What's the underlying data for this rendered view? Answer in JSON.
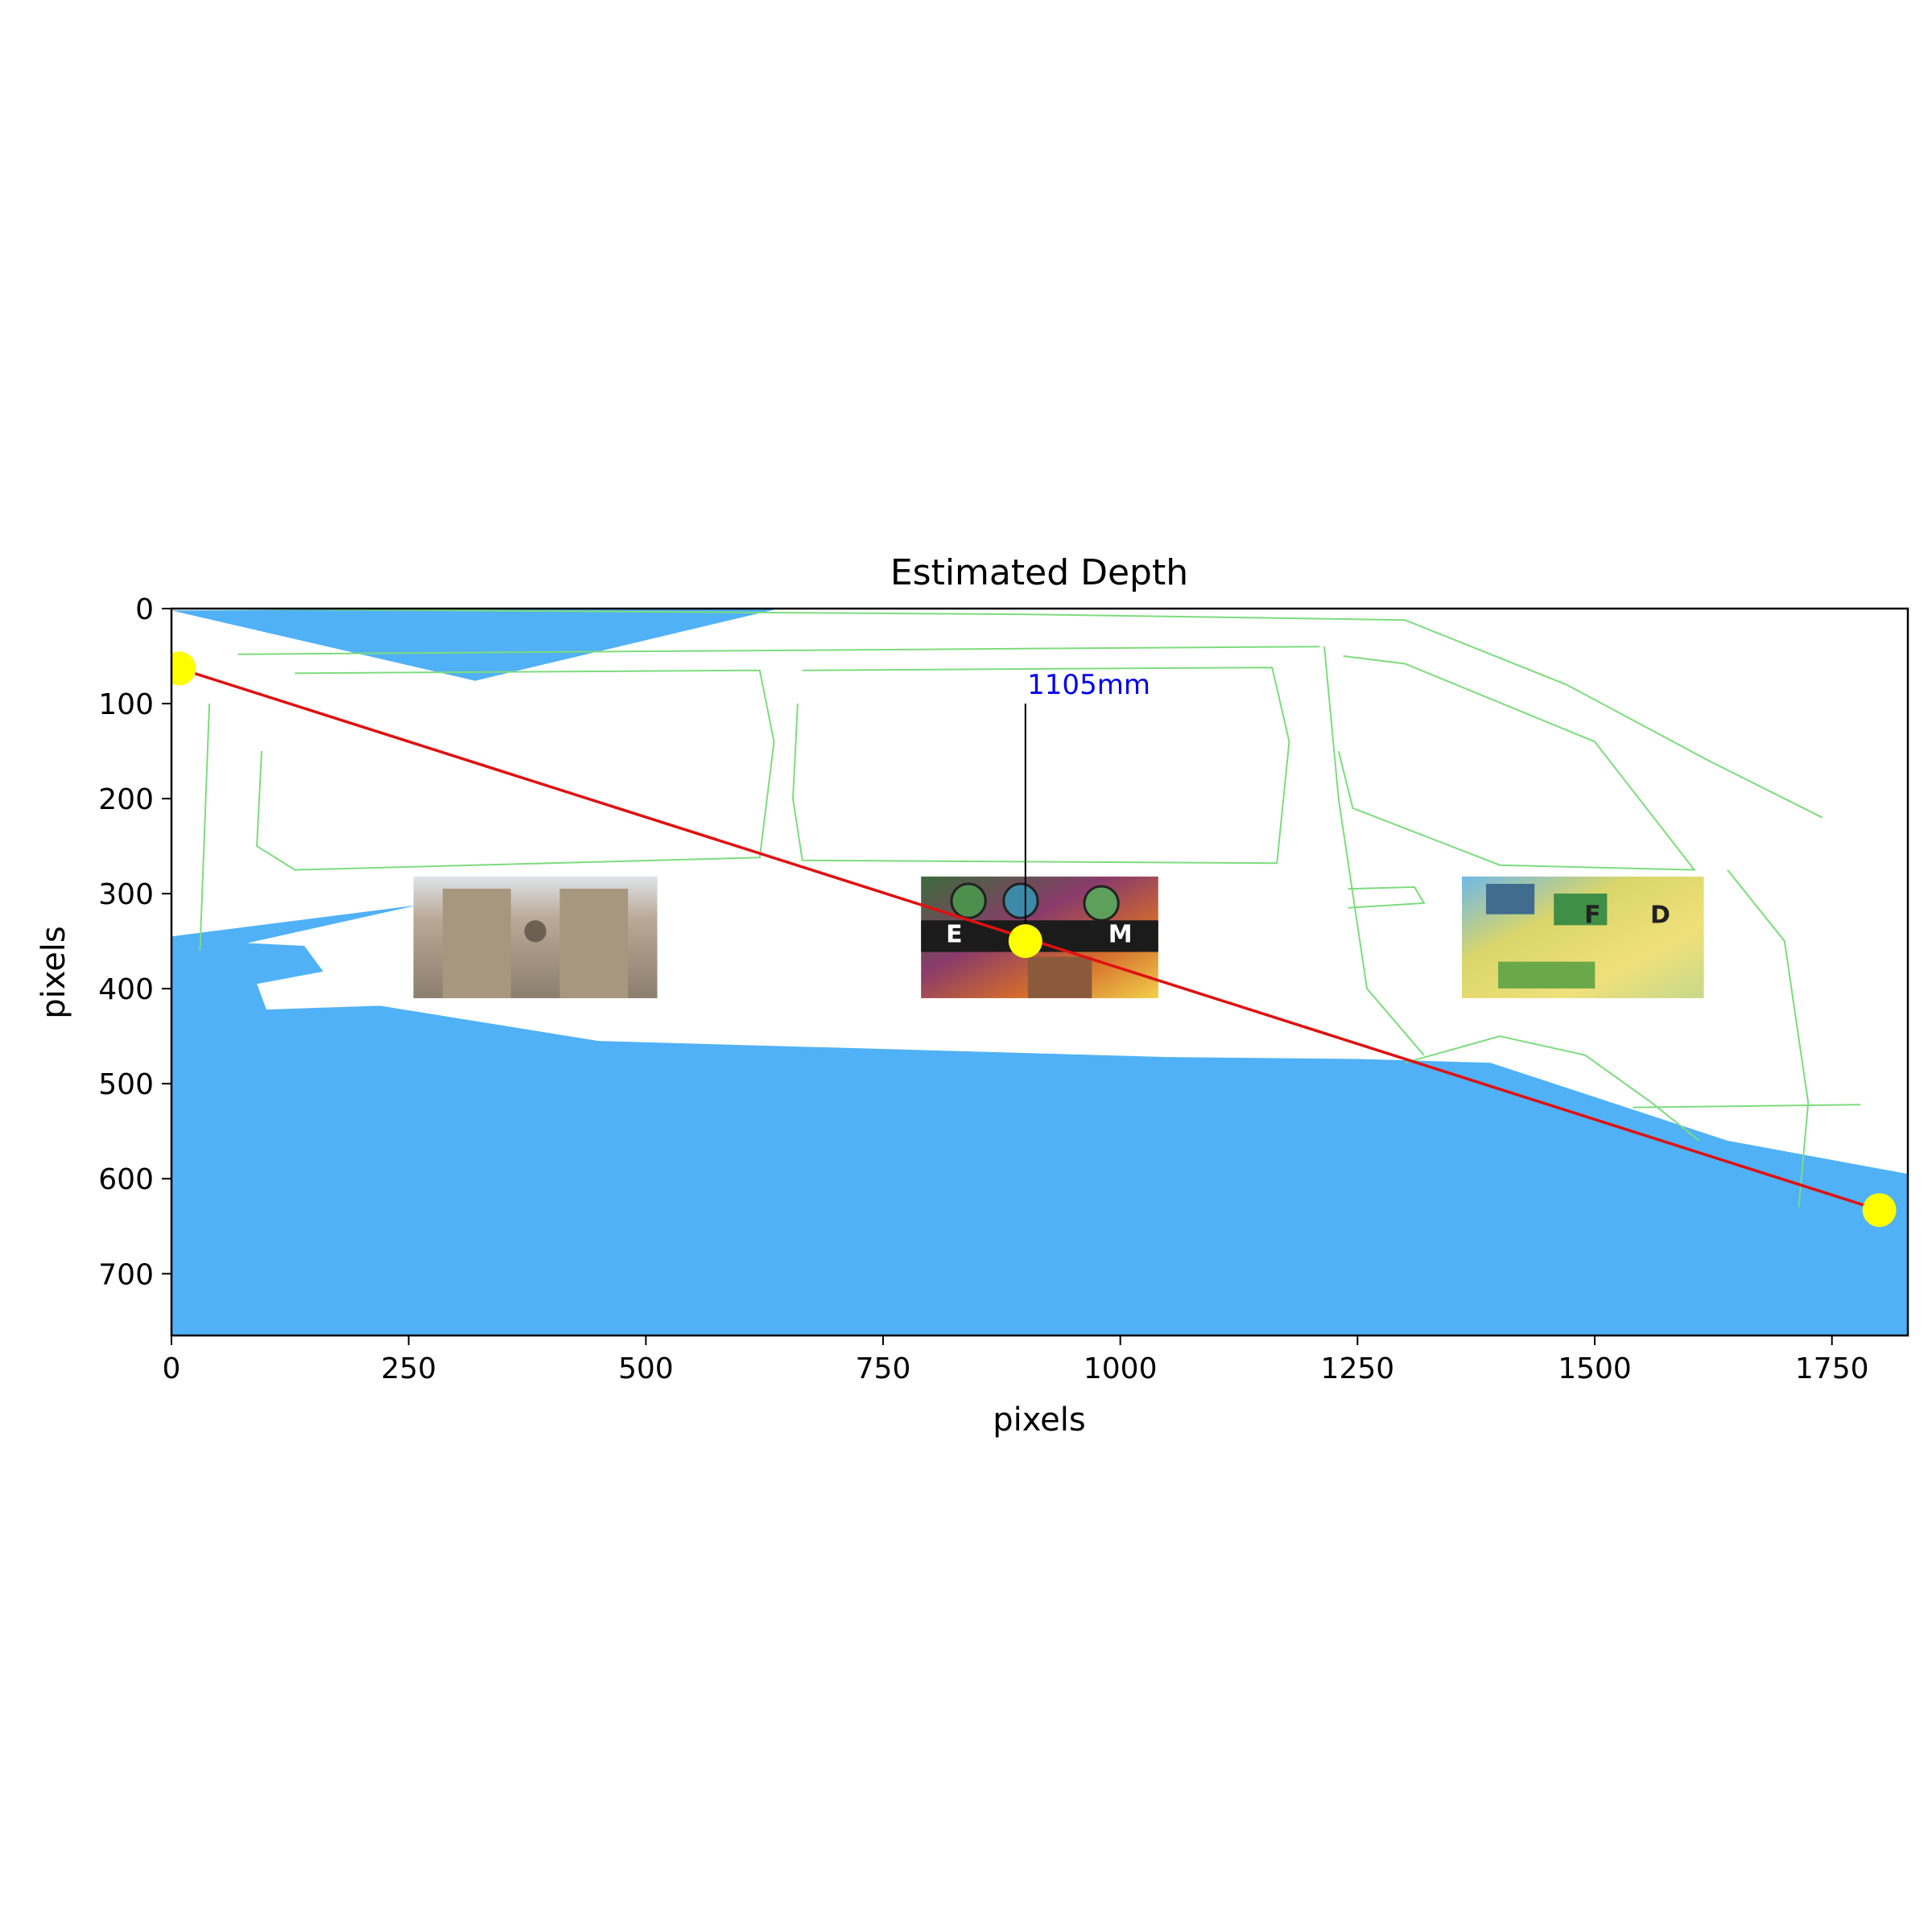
{
  "chart_data": {
    "type": "scatter",
    "title": "Estimated Depth",
    "xlabel": "pixels",
    "ylabel": "pixels",
    "xlim": [
      0,
      1830
    ],
    "ylim": [
      765,
      0
    ],
    "y_inverted": true,
    "x_ticks": [
      0,
      250,
      500,
      750,
      1000,
      1250,
      1500,
      1750
    ],
    "y_ticks": [
      0,
      100,
      200,
      300,
      400,
      500,
      600,
      700
    ],
    "grid": false,
    "colors": {
      "depth_fill": "#50b1f7",
      "outline": "#7ddc7d",
      "line": "#e01010",
      "markers": "#ffff00",
      "annotation_text": "#0000ee",
      "leader": "#000000"
    },
    "depth_regions": [
      {
        "name": "upper-wedge",
        "points": [
          [
            0,
            2
          ],
          [
            640,
            0
          ],
          [
            320,
            76
          ]
        ]
      },
      {
        "name": "lower-band",
        "points": [
          [
            0,
            345
          ],
          [
            260,
            312
          ],
          [
            80,
            352
          ],
          [
            140,
            355
          ],
          [
            160,
            382
          ],
          [
            90,
            395
          ],
          [
            100,
            422
          ],
          [
            220,
            418
          ],
          [
            450,
            455
          ],
          [
            1050,
            472
          ],
          [
            1250,
            474
          ],
          [
            1390,
            478
          ],
          [
            1640,
            560
          ],
          [
            1830,
            595
          ],
          [
            1830,
            765
          ],
          [
            0,
            765
          ]
        ]
      }
    ],
    "measurement_line": {
      "x": [
        8,
        1800
      ],
      "y": [
        63,
        633
      ]
    },
    "markers": {
      "x": [
        8,
        900,
        1800
      ],
      "y": [
        63,
        350,
        633
      ]
    },
    "annotation": {
      "text": "1105mm",
      "x": 902,
      "y": 90,
      "leader_x": 900,
      "leader_y": [
        100,
        350
      ]
    },
    "thumbnails": [
      {
        "name": "cathedral-photo",
        "x0": 255,
        "x1": 512,
        "y0": 282,
        "y1": 410
      },
      {
        "name": "collage-photo",
        "x0": 790,
        "x1": 1040,
        "y0": 282,
        "y1": 410,
        "letters": [
          "E",
          "M"
        ]
      },
      {
        "name": "chart-collage-photo",
        "x0": 1360,
        "x1": 1615,
        "y0": 282,
        "y1": 410,
        "letters": [
          "F",
          "D"
        ]
      }
    ],
    "outlines": [
      {
        "name": "van-roof",
        "points": [
          [
            0,
            0
          ],
          [
            320,
            2
          ],
          [
            900,
            6
          ],
          [
            1300,
            12
          ],
          [
            1470,
            80
          ],
          [
            1620,
            160
          ],
          [
            1740,
            220
          ]
        ]
      },
      {
        "name": "side-window-1",
        "points": [
          [
            130,
            68
          ],
          [
            620,
            65
          ],
          [
            635,
            140
          ],
          [
            620,
            262
          ],
          [
            130,
            275
          ],
          [
            90,
            250
          ],
          [
            95,
            150
          ]
        ]
      },
      {
        "name": "side-window-2",
        "points": [
          [
            665,
            65
          ],
          [
            1160,
            62
          ],
          [
            1178,
            140
          ],
          [
            1165,
            268
          ],
          [
            665,
            265
          ],
          [
            655,
            200
          ],
          [
            660,
            100
          ]
        ]
      },
      {
        "name": "front-window",
        "points": [
          [
            1235,
            50
          ],
          [
            1300,
            58
          ],
          [
            1500,
            140
          ],
          [
            1605,
            275
          ],
          [
            1400,
            270
          ],
          [
            1245,
            210
          ],
          [
            1230,
            150
          ]
        ]
      },
      {
        "name": "door-handle",
        "points": [
          [
            1240,
            295
          ],
          [
            1310,
            293
          ],
          [
            1320,
            310
          ],
          [
            1240,
            315
          ]
        ]
      },
      {
        "name": "rear-pillar",
        "points": [
          [
            40,
            100
          ],
          [
            30,
            360
          ]
        ]
      },
      {
        "name": "roof-rail",
        "points": [
          [
            70,
            48
          ],
          [
            1210,
            40
          ]
        ]
      },
      {
        "name": "front-pillar",
        "points": [
          [
            1215,
            40
          ],
          [
            1230,
            200
          ],
          [
            1260,
            400
          ],
          [
            1320,
            470
          ]
        ]
      },
      {
        "name": "wheel-arch",
        "points": [
          [
            1300,
            478
          ],
          [
            1400,
            450
          ],
          [
            1490,
            470
          ],
          [
            1560,
            520
          ],
          [
            1610,
            560
          ]
        ]
      },
      {
        "name": "hood",
        "points": [
          [
            1640,
            275
          ],
          [
            1700,
            350
          ],
          [
            1725,
            520
          ],
          [
            1715,
            630
          ]
        ]
      },
      {
        "name": "sill",
        "points": [
          [
            1540,
            525
          ],
          [
            1780,
            522
          ]
        ]
      }
    ]
  }
}
